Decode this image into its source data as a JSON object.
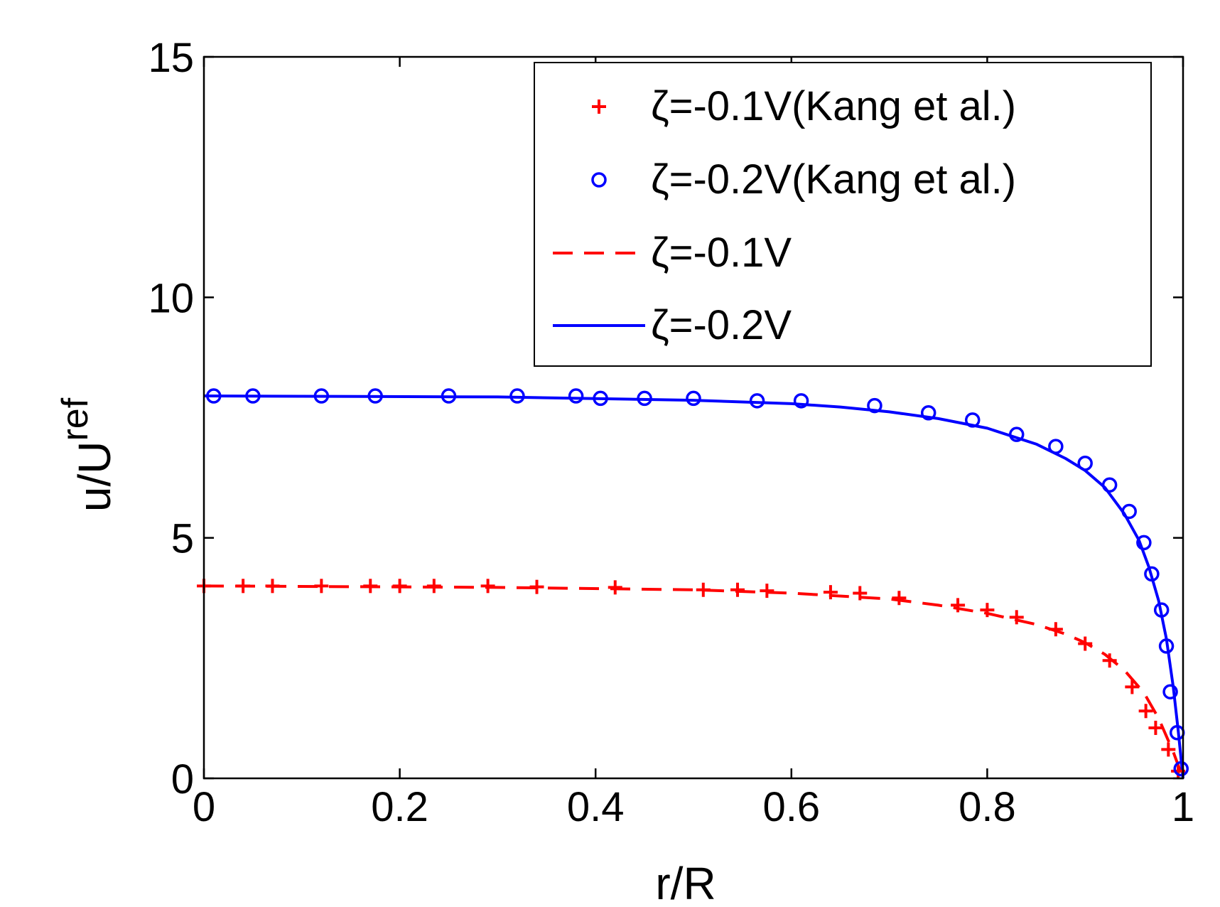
{
  "chart_data": {
    "type": "line",
    "title": "",
    "xlabel": "r/R",
    "ylabel_main": "u/U",
    "ylabel_sub": "ref",
    "xlim": [
      0,
      1
    ],
    "ylim": [
      0,
      15
    ],
    "x_ticks": [
      0,
      0.2,
      0.4,
      0.6,
      0.8,
      1
    ],
    "x_tick_labels": [
      "0",
      "0.2",
      "0.4",
      "0.6",
      "0.8",
      "1"
    ],
    "y_ticks": [
      0,
      5,
      10,
      15
    ],
    "y_tick_labels": [
      "0",
      "5",
      "10",
      "15"
    ],
    "grid": false,
    "legend_position": "top-right",
    "series": [
      {
        "name": "ζ=-0.1V(Kang et al.)",
        "kind": "marker",
        "marker": "plus",
        "color": "#ff0000",
        "x": [
          0.0,
          0.04,
          0.07,
          0.12,
          0.17,
          0.2,
          0.235,
          0.29,
          0.34,
          0.42,
          0.51,
          0.545,
          0.575,
          0.64,
          0.67,
          0.71,
          0.77,
          0.8,
          0.83,
          0.87,
          0.9,
          0.925,
          0.948,
          0.962,
          0.972,
          0.985,
          0.995
        ],
        "y": [
          4.0,
          4.0,
          4.0,
          4.0,
          4.0,
          4.0,
          4.0,
          4.0,
          3.98,
          3.97,
          3.92,
          3.92,
          3.9,
          3.87,
          3.85,
          3.75,
          3.6,
          3.5,
          3.35,
          3.1,
          2.8,
          2.45,
          1.9,
          1.4,
          1.05,
          0.6,
          0.15
        ]
      },
      {
        "name": "ζ=-0.2V(Kang et al.)",
        "kind": "marker",
        "marker": "circle",
        "color": "#0000ff",
        "x": [
          0.01,
          0.05,
          0.12,
          0.175,
          0.25,
          0.32,
          0.38,
          0.405,
          0.45,
          0.5,
          0.565,
          0.61,
          0.685,
          0.74,
          0.785,
          0.83,
          0.87,
          0.9,
          0.925,
          0.945,
          0.96,
          0.968,
          0.978,
          0.983,
          0.987,
          0.994,
          0.998
        ],
        "y": [
          7.95,
          7.95,
          7.95,
          7.95,
          7.95,
          7.95,
          7.95,
          7.9,
          7.9,
          7.9,
          7.85,
          7.85,
          7.75,
          7.6,
          7.45,
          7.15,
          6.9,
          6.55,
          6.1,
          5.55,
          4.9,
          4.25,
          3.5,
          2.75,
          1.8,
          0.95,
          0.2
        ]
      },
      {
        "name": "ζ=-0.1V",
        "kind": "line",
        "dash": "dashed",
        "color": "#ff0000",
        "x": [
          0,
          0.3,
          0.5,
          0.6,
          0.7,
          0.75,
          0.8,
          0.85,
          0.88,
          0.9,
          0.92,
          0.94,
          0.96,
          0.975,
          0.99,
          1.0
        ],
        "y": [
          4.0,
          3.97,
          3.92,
          3.85,
          3.73,
          3.6,
          3.43,
          3.2,
          3.0,
          2.82,
          2.58,
          2.25,
          1.78,
          1.25,
          0.55,
          0.0
        ]
      },
      {
        "name": "ζ=-0.2V",
        "kind": "line",
        "dash": "solid",
        "color": "#0000ff",
        "x": [
          0,
          0.3,
          0.5,
          0.6,
          0.65,
          0.7,
          0.75,
          0.8,
          0.85,
          0.88,
          0.9,
          0.92,
          0.94,
          0.955,
          0.965,
          0.975,
          0.983,
          0.99,
          0.995,
          1.0
        ],
        "y": [
          7.95,
          7.93,
          7.86,
          7.79,
          7.72,
          7.62,
          7.48,
          7.28,
          6.95,
          6.65,
          6.4,
          6.05,
          5.5,
          4.95,
          4.4,
          3.7,
          2.9,
          1.9,
          1.0,
          0.0
        ]
      }
    ]
  }
}
